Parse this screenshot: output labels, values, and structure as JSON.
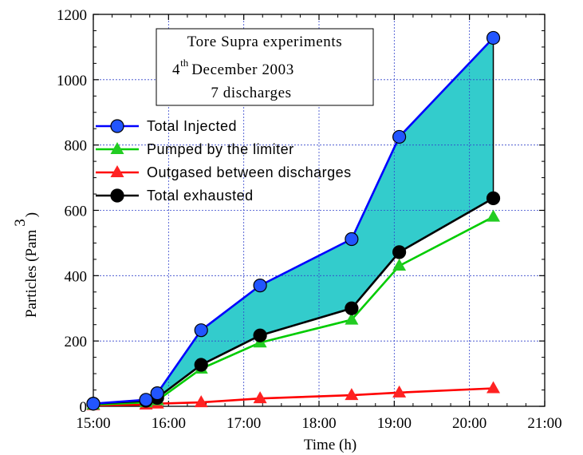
{
  "chart_data": {
    "type": "line",
    "xlabel": "Time (h)",
    "ylabel": "Particles (Pam",
    "ylabel_sup": "3",
    "ylabel_close": ")",
    "xlim": [
      15,
      21
    ],
    "ylim": [
      0,
      1200
    ],
    "grid": true,
    "x_ticks": [
      "15:00",
      "16:00",
      "17:00",
      "18:00",
      "19:00",
      "20:00",
      "21:00"
    ],
    "y_ticks": [
      "0",
      "200",
      "400",
      "600",
      "800",
      "1000",
      "1200"
    ],
    "legend_position": "top-left",
    "fill_between": {
      "upper": "Total Injected",
      "lower": "Total exhausted",
      "color": "#33cccc"
    },
    "annotation": {
      "line1": "Tore Supra experiments",
      "line2_num": "4",
      "line2_sup": "th",
      "line2_rest": "December 2003",
      "line3": "7 discharges"
    },
    "series": [
      {
        "name": "Total Injected",
        "color": "#0000ff",
        "marker_color": "#2255ff",
        "marker": "circle",
        "x": [
          "15:00",
          "15:42",
          "15:51",
          "16:26",
          "17:13",
          "18:26",
          "19:04",
          "20:19"
        ],
        "y": [
          8,
          20,
          40,
          233,
          370,
          512,
          825,
          1128
        ]
      },
      {
        "name": "Pumped by the limiter",
        "color": "#00cc00",
        "marker_color": "#22cc22",
        "marker": "triangle",
        "x": [
          "15:00",
          "15:42",
          "15:51",
          "16:26",
          "17:13",
          "18:26",
          "19:04",
          "20:19"
        ],
        "y": [
          5,
          12,
          18,
          115,
          195,
          265,
          430,
          580
        ]
      },
      {
        "name": "Outgased between discharges",
        "color": "#ff0000",
        "marker_color": "#ff2222",
        "marker": "triangle",
        "x": [
          "15:00",
          "15:42",
          "15:51",
          "16:26",
          "17:13",
          "18:26",
          "19:04",
          "20:19"
        ],
        "y": [
          3,
          5,
          8,
          12,
          24,
          34,
          42,
          55
        ]
      },
      {
        "name": "Total exhausted",
        "color": "#000000",
        "marker_color": "#000000",
        "marker": "circle",
        "x": [
          "15:00",
          "15:42",
          "15:51",
          "16:26",
          "17:13",
          "18:26",
          "19:04",
          "20:19"
        ],
        "y": [
          8,
          17,
          26,
          127,
          217,
          300,
          472,
          637
        ]
      }
    ]
  }
}
